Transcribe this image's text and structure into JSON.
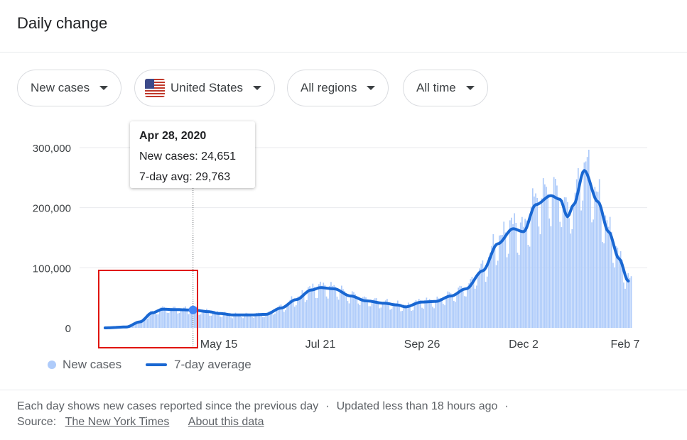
{
  "title": "Daily change",
  "filters": {
    "metric": "New cases",
    "country": "United States",
    "region": "All regions",
    "time": "All time"
  },
  "tooltip": {
    "date": "Apr 28, 2020",
    "new_cases_label": "New cases: 24,651",
    "avg_label": "7-day avg: 29,763"
  },
  "legend": {
    "new_cases": "New cases",
    "avg": "7-day average"
  },
  "footer": {
    "line1_a": "Each day shows new cases reported since the previous day",
    "sep": "·",
    "line1_b": "Updated less than 18 hours ago",
    "source_label": "Source:",
    "source_link": "The New York Times",
    "about_link": "About this data"
  },
  "colors": {
    "bars": "#aecbfa",
    "line": "#1967d2",
    "highlight_box": "#e0140c"
  },
  "chart_data": {
    "type": "bar",
    "x_ticks": [
      "May 15",
      "Jul 21",
      "Sep 26",
      "Dec 2",
      "Feb 7"
    ],
    "y_ticks": [
      "0",
      "100,000",
      "200,000",
      "300,000"
    ],
    "ylim": [
      0,
      300000
    ],
    "grid": true,
    "legend_position": "bottom-left",
    "series": [
      {
        "name": "7-day average",
        "kind": "line",
        "points": [
          [
            "Mar 1",
            0
          ],
          [
            "Mar 15",
            1500
          ],
          [
            "Mar 24",
            10000
          ],
          [
            "Apr 1",
            25000
          ],
          [
            "Apr 8",
            31000
          ],
          [
            "Apr 15",
            30500
          ],
          [
            "Apr 28",
            29763
          ],
          [
            "May 8",
            27000
          ],
          [
            "May 15",
            24000
          ],
          [
            "May 25",
            21500
          ],
          [
            "Jun 5",
            21500
          ],
          [
            "Jun 15",
            22500
          ],
          [
            "Jun 25",
            33000
          ],
          [
            "Jul 5",
            47000
          ],
          [
            "Jul 15",
            63000
          ],
          [
            "Jul 21",
            67000
          ],
          [
            "Jul 30",
            65000
          ],
          [
            "Aug 10",
            53000
          ],
          [
            "Aug 20",
            45000
          ],
          [
            "Sep 1",
            41000
          ],
          [
            "Sep 10",
            38000
          ],
          [
            "Sep 15",
            35000
          ],
          [
            "Sep 26",
            43000
          ],
          [
            "Oct 5",
            44000
          ],
          [
            "Oct 15",
            53000
          ],
          [
            "Oct 25",
            65000
          ],
          [
            "Nov 5",
            95000
          ],
          [
            "Nov 15",
            140000
          ],
          [
            "Nov 25",
            165000
          ],
          [
            "Dec 2",
            160000
          ],
          [
            "Dec 10",
            205000
          ],
          [
            "Dec 20",
            220000
          ],
          [
            "Dec 26",
            214000
          ],
          [
            "Dec 31",
            185000
          ],
          [
            "Jan 4",
            205000
          ],
          [
            "Jan 11",
            262000
          ],
          [
            "Jan 20",
            210000
          ],
          [
            "Jan 27",
            160000
          ],
          [
            "Feb 3",
            115000
          ],
          [
            "Feb 9",
            78000
          ]
        ]
      },
      {
        "name": "New cases",
        "kind": "bars",
        "note": "daily values follow the 7-day average with weekly variation",
        "highlight": {
          "date": "Apr 28, 2020",
          "value": 24651
        }
      }
    ]
  }
}
